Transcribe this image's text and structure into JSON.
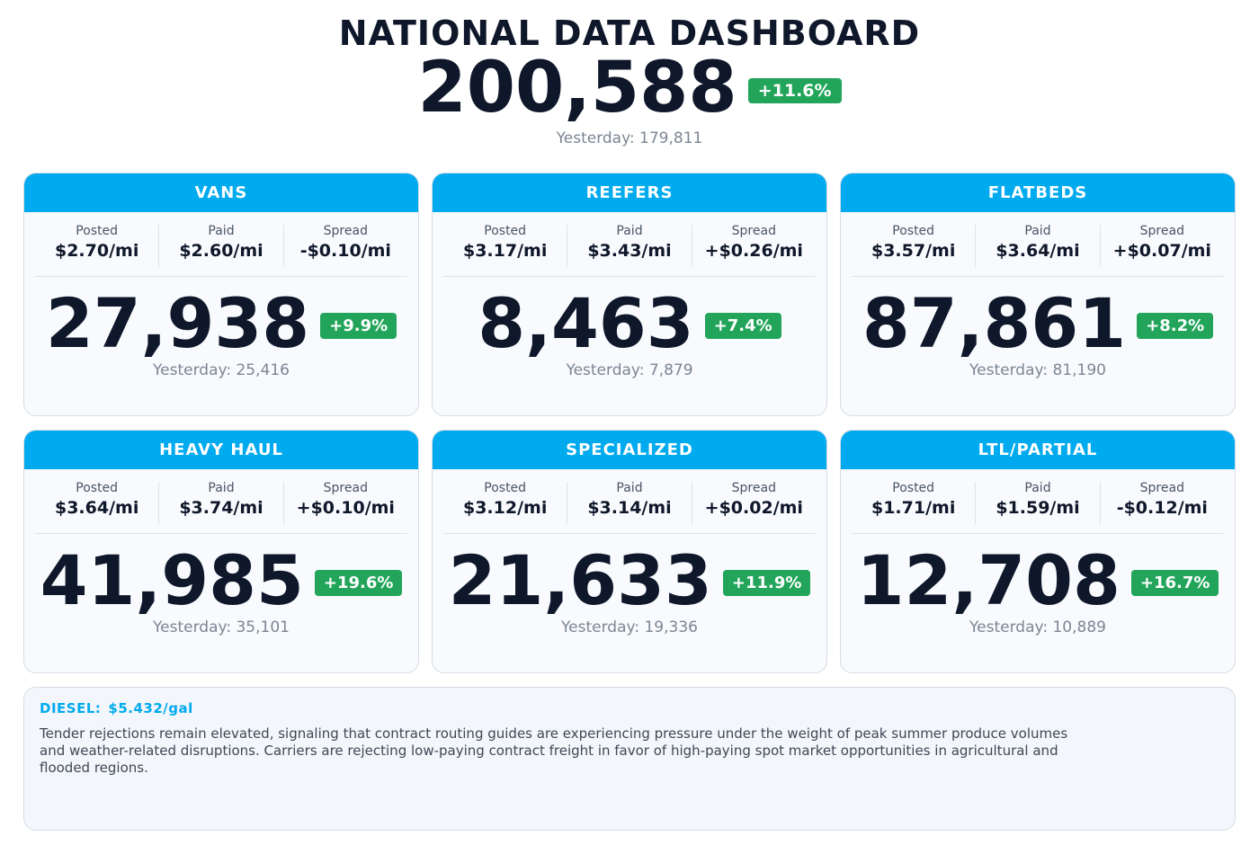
{
  "header": {
    "title": "NATIONAL DATA DASHBOARD",
    "total": "200,588",
    "change": "+11.6%",
    "yesterday": "Yesterday: 179,811"
  },
  "labels": {
    "posted": "Posted",
    "paid": "Paid",
    "spread": "Spread"
  },
  "cards": [
    {
      "name": "VANS",
      "posted": "$2.70/mi",
      "paid": "$2.60/mi",
      "spread": "-$0.10/mi",
      "count": "27,938",
      "change": "+9.9%",
      "yesterday": "Yesterday: 25,416"
    },
    {
      "name": "REEFERS",
      "posted": "$3.17/mi",
      "paid": "$3.43/mi",
      "spread": "+$0.26/mi",
      "count": "8,463",
      "change": "+7.4%",
      "yesterday": "Yesterday: 7,879"
    },
    {
      "name": "FLATBEDS",
      "posted": "$3.57/mi",
      "paid": "$3.64/mi",
      "spread": "+$0.07/mi",
      "count": "87,861",
      "change": "+8.2%",
      "yesterday": "Yesterday: 81,190"
    },
    {
      "name": "HEAVY HAUL",
      "posted": "$3.64/mi",
      "paid": "$3.74/mi",
      "spread": "+$0.10/mi",
      "count": "41,985",
      "change": "+19.6%",
      "yesterday": "Yesterday: 35,101"
    },
    {
      "name": "SPECIALIZED",
      "posted": "$3.12/mi",
      "paid": "$3.14/mi",
      "spread": "+$0.02/mi",
      "count": "21,633",
      "change": "+11.9%",
      "yesterday": "Yesterday: 19,336"
    },
    {
      "name": "LTL/PARTIAL",
      "posted": "$1.71/mi",
      "paid": "$1.59/mi",
      "spread": "-$0.12/mi",
      "count": "12,708",
      "change": "+16.7%",
      "yesterday": "Yesterday: 10,889"
    }
  ],
  "news": {
    "diesel_label": "DIESEL:",
    "diesel_value": "$5.432/gal",
    "text": "Tender rejections remain elevated, signaling that contract routing guides are experiencing pressure under the weight of peak summer produce volumes and weather-related disruptions. Carriers are rejecting low-paying contract freight in favor of high-paying spot market opportunities in agricultural and flooded regions."
  },
  "colors": {
    "accent": "#00aaee",
    "positive": "#22a55a",
    "text": "#0f172a",
    "muted": "#7c8693"
  }
}
